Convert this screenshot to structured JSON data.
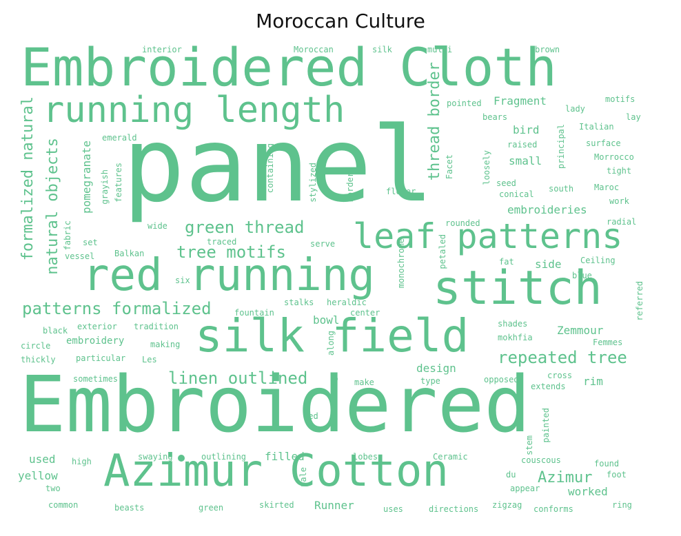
{
  "title": "Moroccan Culture",
  "color": "#5ec28d",
  "words": [
    {
      "text": "panel",
      "size": 150
    },
    {
      "text": "Embroidered",
      "size": 112
    },
    {
      "text": "Embroidered Cloth",
      "size": 76
    },
    {
      "text": "stitch",
      "size": 68
    },
    {
      "text": "silk field",
      "size": 66
    },
    {
      "text": "red running",
      "size": 64
    },
    {
      "text": "Azimur Cotton",
      "size": 64
    },
    {
      "text": "running length",
      "size": 52
    },
    {
      "text": "leaf patterns",
      "size": 50
    },
    {
      "text": "repeated tree",
      "size": 24
    },
    {
      "text": "linen outlined",
      "size": 24
    },
    {
      "text": "patterns formalized",
      "size": 24
    },
    {
      "text": "green thread",
      "size": 24
    },
    {
      "text": "tree motifs",
      "size": 24
    },
    {
      "text": "Azimur",
      "size": 22
    },
    {
      "text": "thread border",
      "size": 22
    },
    {
      "text": "natural objects",
      "size": 22
    },
    {
      "text": "formalized natural",
      "size": 22
    },
    {
      "text": "Zemmour",
      "size": 16
    },
    {
      "text": "embroideries",
      "size": 16
    },
    {
      "text": "Fragment",
      "size": 16
    },
    {
      "text": "bird",
      "size": 16
    },
    {
      "text": "small",
      "size": 16
    },
    {
      "text": "side",
      "size": 16
    },
    {
      "text": "bowl",
      "size": 16
    },
    {
      "text": "design",
      "size": 16
    },
    {
      "text": "rim",
      "size": 16
    },
    {
      "text": "worked",
      "size": 16
    },
    {
      "text": "Runner",
      "size": 16
    },
    {
      "text": "filled",
      "size": 16
    },
    {
      "text": "used",
      "size": 16
    },
    {
      "text": "yellow",
      "size": 16
    },
    {
      "text": "pomegranate",
      "size": 16
    },
    {
      "text": "embroidery",
      "size": 14
    },
    {
      "text": "interior",
      "size": 12
    },
    {
      "text": "Moroccan",
      "size": 12
    },
    {
      "text": "silk",
      "size": 12
    },
    {
      "text": "multi",
      "size": 12
    },
    {
      "text": "brown",
      "size": 12
    },
    {
      "text": "motifs",
      "size": 12
    },
    {
      "text": "pointed",
      "size": 12
    },
    {
      "text": "lady",
      "size": 12
    },
    {
      "text": "lay",
      "size": 12
    },
    {
      "text": "bears",
      "size": 12
    },
    {
      "text": "Italian",
      "size": 12
    },
    {
      "text": "emerald",
      "size": 12
    },
    {
      "text": "raised",
      "size": 12
    },
    {
      "text": "surface",
      "size": 12
    },
    {
      "text": "Morrocco",
      "size": 12
    },
    {
      "text": "tight",
      "size": 12
    },
    {
      "text": "seed",
      "size": 12
    },
    {
      "text": "south",
      "size": 12
    },
    {
      "text": "Maroc",
      "size": 12
    },
    {
      "text": "conical",
      "size": 12
    },
    {
      "text": "work",
      "size": 12
    },
    {
      "text": "flower",
      "size": 12
    },
    {
      "text": "rounded",
      "size": 12
    },
    {
      "text": "radial",
      "size": 12
    },
    {
      "text": "wide",
      "size": 12
    },
    {
      "text": "set",
      "size": 12
    },
    {
      "text": "traced",
      "size": 12
    },
    {
      "text": "serve",
      "size": 12
    },
    {
      "text": "vessel",
      "size": 12
    },
    {
      "text": "Balkan",
      "size": 12
    },
    {
      "text": "fat",
      "size": 12
    },
    {
      "text": "Ceiling",
      "size": 12
    },
    {
      "text": "six",
      "size": 12
    },
    {
      "text": "blue",
      "size": 12
    },
    {
      "text": "stalks",
      "size": 12
    },
    {
      "text": "heraldic",
      "size": 12
    },
    {
      "text": "fountain",
      "size": 12
    },
    {
      "text": "center",
      "size": 12
    },
    {
      "text": "black",
      "size": 12
    },
    {
      "text": "exterior",
      "size": 12
    },
    {
      "text": "tradition",
      "size": 12
    },
    {
      "text": "shades",
      "size": 12
    },
    {
      "text": "mokhfia",
      "size": 12
    },
    {
      "text": "circle",
      "size": 12
    },
    {
      "text": "making",
      "size": 12
    },
    {
      "text": "Femmes",
      "size": 12
    },
    {
      "text": "thickly",
      "size": 12
    },
    {
      "text": "particular",
      "size": 12
    },
    {
      "text": "Les",
      "size": 12
    },
    {
      "text": "sometimes",
      "size": 12
    },
    {
      "text": "make",
      "size": 12
    },
    {
      "text": "type",
      "size": 12
    },
    {
      "text": "opposed",
      "size": 12
    },
    {
      "text": "cross",
      "size": 12
    },
    {
      "text": "extends",
      "size": 12
    },
    {
      "text": "red",
      "size": 12
    },
    {
      "text": "high",
      "size": 12
    },
    {
      "text": "swaying",
      "size": 12
    },
    {
      "text": "outlining",
      "size": 12
    },
    {
      "text": "lobes",
      "size": 12
    },
    {
      "text": "Ceramic",
      "size": 12
    },
    {
      "text": "couscous",
      "size": 12
    },
    {
      "text": "found",
      "size": 12
    },
    {
      "text": "du",
      "size": 12
    },
    {
      "text": "foot",
      "size": 12
    },
    {
      "text": "two",
      "size": 12
    },
    {
      "text": "appear",
      "size": 12
    },
    {
      "text": "common",
      "size": 12
    },
    {
      "text": "beasts",
      "size": 12
    },
    {
      "text": "green",
      "size": 12
    },
    {
      "text": "skirted",
      "size": 12
    },
    {
      "text": "uses",
      "size": 12
    },
    {
      "text": "directions",
      "size": 12
    },
    {
      "text": "zigzag",
      "size": 12
    },
    {
      "text": "conforms",
      "size": 12
    },
    {
      "text": "ring",
      "size": 12
    },
    {
      "text": "features",
      "size": 12
    },
    {
      "text": "grayish",
      "size": 12
    },
    {
      "text": "fabric",
      "size": 12
    },
    {
      "text": "containing",
      "size": 12
    },
    {
      "text": "stylized",
      "size": 12
    },
    {
      "text": "border",
      "size": 12
    },
    {
      "text": "Facet",
      "size": 12
    },
    {
      "text": "loosely",
      "size": 12
    },
    {
      "text": "principal",
      "size": 12
    },
    {
      "text": "petaled",
      "size": 12
    },
    {
      "text": "monochrome",
      "size": 12
    },
    {
      "text": "along",
      "size": 12
    },
    {
      "text": "referred",
      "size": 12
    },
    {
      "text": "stem",
      "size": 12
    },
    {
      "text": "painted",
      "size": 12
    },
    {
      "text": "pale",
      "size": 12
    }
  ]
}
